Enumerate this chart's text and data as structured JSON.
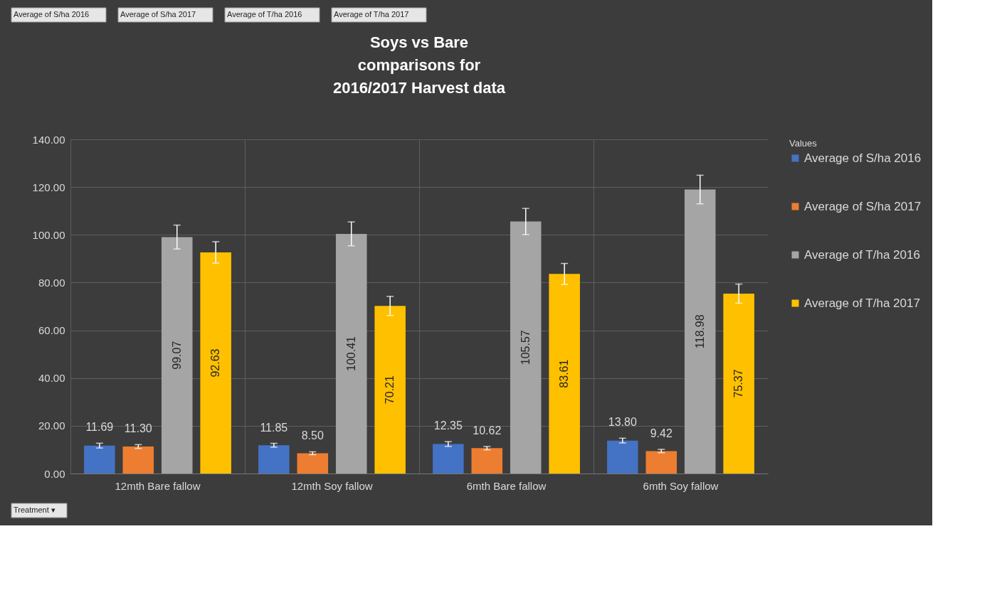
{
  "chart_data": {
    "type": "bar",
    "title": [
      "Soys vs Bare",
      "comparisons for",
      "2016/2017 Harvest data"
    ],
    "categories": [
      "12mth Bare fallow",
      "12mth Soy fallow",
      "6mth Bare fallow",
      "6mth Soy fallow"
    ],
    "series": [
      {
        "name": "Average of S/ha 2016",
        "color": "#4472c4",
        "values": [
          11.69,
          11.85,
          12.35,
          13.8
        ],
        "value_labels": [
          "11.69",
          "11.85",
          "12.35",
          "13.80"
        ],
        "errors": [
          1,
          0.8,
          1,
          1
        ]
      },
      {
        "name": "Average of S/ha 2017",
        "color": "#ed7d31",
        "values": [
          11.3,
          8.5,
          10.62,
          9.42
        ],
        "value_labels": [
          "11.30",
          "8.50",
          "10.62",
          "9.42"
        ],
        "errors": [
          0.8,
          0.6,
          0.7,
          0.7
        ]
      },
      {
        "name": "Average of T/ha 2016",
        "color": "#a5a5a5",
        "values": [
          99.07,
          100.41,
          105.57,
          118.98
        ],
        "value_labels": [
          "99.07",
          "100.41",
          "105.57",
          "118.98"
        ],
        "errors": [
          5,
          5,
          5.5,
          6
        ]
      },
      {
        "name": "Average of T/ha 2017",
        "color": "#ffc000",
        "values": [
          92.63,
          70.21,
          83.61,
          75.37
        ],
        "value_labels": [
          "92.63",
          "70.21",
          "83.61",
          "75.37"
        ],
        "errors": [
          4.5,
          4,
          4.4,
          4
        ]
      }
    ],
    "ylim": [
      0,
      140
    ],
    "yticks": [
      {
        "value": 0,
        "label": "0.00"
      },
      {
        "value": 20,
        "label": "20.00"
      },
      {
        "value": 40,
        "label": "40.00"
      },
      {
        "value": 60,
        "label": "60.00"
      },
      {
        "value": 80,
        "label": "80.00"
      },
      {
        "value": 100,
        "label": "100.00"
      },
      {
        "value": 120,
        "label": "120.00"
      },
      {
        "value": 140,
        "label": "140.00"
      }
    ],
    "grid": true,
    "legend": "right",
    "legend_title": "Values",
    "annotations": [
      "Average of S/ha 2016",
      "Average of S/ha 2017",
      "Average of T/ha 2016",
      "Average of T/ha 2017",
      "Treatment ▾"
    ]
  }
}
